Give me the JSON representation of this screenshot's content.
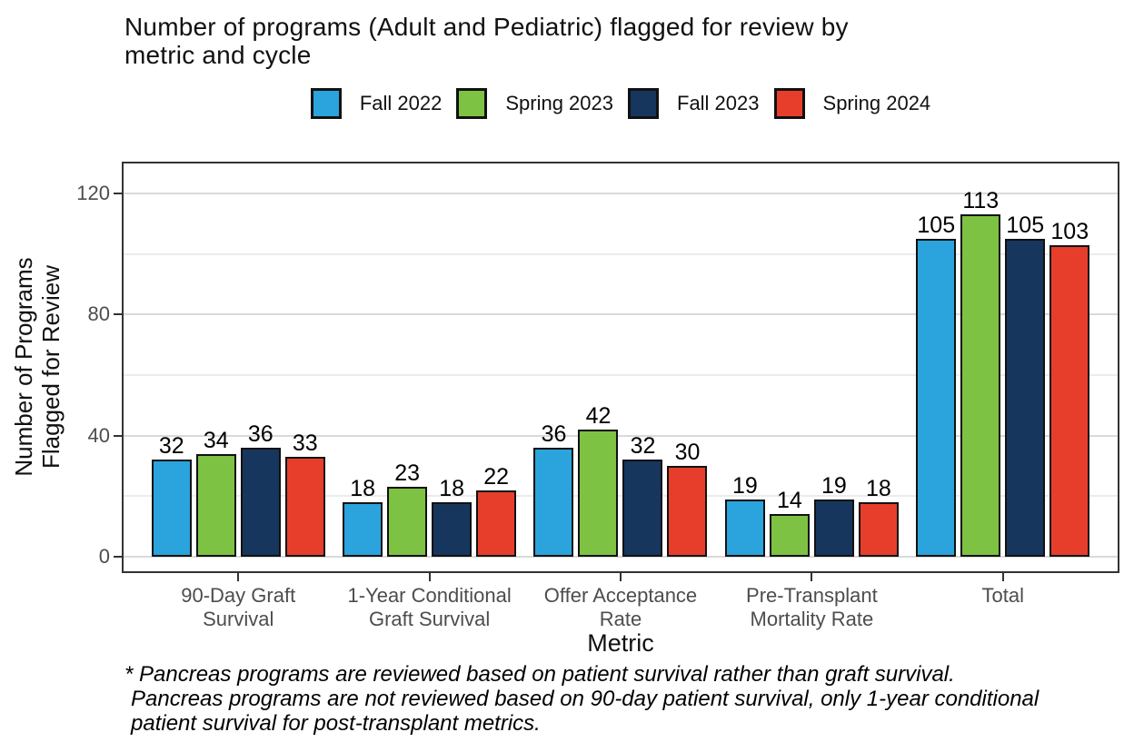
{
  "title_lines": [
    "Number of programs (Adult and Pediatric) flagged for review by",
    "metric and cycle"
  ],
  "chart_data": {
    "type": "bar",
    "title": "Number of programs (Adult and Pediatric) flagged for review by metric and cycle",
    "categories": [
      "90-Day Graft Survival",
      "1-Year Conditional Graft Survival",
      "Offer Acceptance Rate",
      "Pre-Transplant Mortality Rate",
      "Total"
    ],
    "xtick_labels": [
      "90-Day Graft\nSurvival",
      "1-Year Conditional\nGraft Survival",
      "Offer Acceptance\nRate",
      "Pre-Transplant\nMortality Rate",
      "Total"
    ],
    "series": [
      {
        "name": "Fall 2022",
        "color": "#2BA3DC",
        "values": [
          32,
          18,
          36,
          19,
          105
        ]
      },
      {
        "name": "Spring 2023",
        "color": "#7DC243",
        "values": [
          34,
          23,
          42,
          14,
          113
        ]
      },
      {
        "name": "Fall 2023",
        "color": "#16365D",
        "values": [
          36,
          18,
          32,
          19,
          105
        ]
      },
      {
        "name": "Spring 2024",
        "color": "#E73E2C",
        "values": [
          33,
          22,
          30,
          18,
          103
        ]
      }
    ],
    "xlabel": "Metric",
    "ylabel": "Number of Programs\nFlagged for Review",
    "ylim": [
      0,
      131
    ],
    "yticks": [
      0,
      40,
      80,
      120
    ],
    "yticks_minor": [
      20,
      60,
      100
    ],
    "bar_labels": true,
    "grid": true,
    "legend_position": "top",
    "bar_outline_color": "#111111"
  },
  "footnote_lines": [
    "* Pancreas programs are reviewed based on patient survival rather than graft survival.",
    "Pancreas programs are not reviewed based on 90-day patient survival, only 1-year conditional",
    "patient survival for post-transplant metrics."
  ]
}
